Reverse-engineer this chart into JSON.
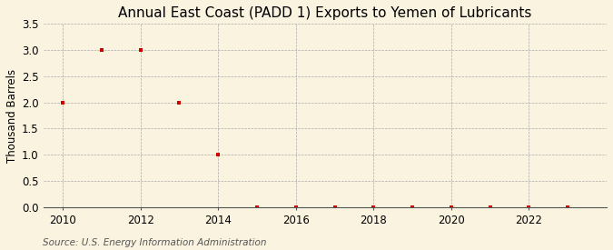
{
  "title": "Annual East Coast (PADD 1) Exports to Yemen of Lubricants",
  "ylabel": "Thousand Barrels",
  "source": "Source: U.S. Energy Information Administration",
  "background_color": "#faf3e0",
  "years": [
    2010,
    2011,
    2012,
    2013,
    2014,
    2015,
    2016,
    2017,
    2018,
    2019,
    2020,
    2021,
    2022,
    2023
  ],
  "values": [
    2.0,
    3.0,
    3.0,
    2.0,
    1.0,
    0.0,
    0.0,
    0.0,
    0.0,
    0.0,
    0.0,
    0.0,
    0.0,
    0.0
  ],
  "marker_color": "#cc0000",
  "marker_size": 3.5,
  "xlim": [
    2009.5,
    2024.0
  ],
  "ylim": [
    0.0,
    3.5
  ],
  "yticks": [
    0.0,
    0.5,
    1.0,
    1.5,
    2.0,
    2.5,
    3.0,
    3.5
  ],
  "xticks": [
    2010,
    2012,
    2014,
    2016,
    2018,
    2020,
    2022
  ],
  "grid_color": "#aaaaaa",
  "title_fontsize": 11,
  "axis_fontsize": 8.5,
  "source_fontsize": 7.5
}
